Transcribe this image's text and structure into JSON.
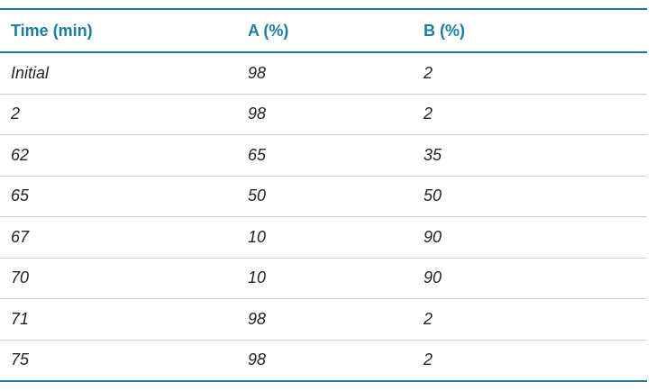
{
  "table": {
    "header": [
      "Time (min)",
      "A (%)",
      "B (%)"
    ],
    "rows": [
      [
        "Initial",
        "98",
        "2"
      ],
      [
        "2",
        "98",
        "2"
      ],
      [
        "62",
        "65",
        "35"
      ],
      [
        "65",
        "50",
        "50"
      ],
      [
        "67",
        "10",
        "90"
      ],
      [
        "70",
        "10",
        "90"
      ],
      [
        "71",
        "98",
        "2"
      ],
      [
        "75",
        "98",
        "2"
      ]
    ]
  }
}
